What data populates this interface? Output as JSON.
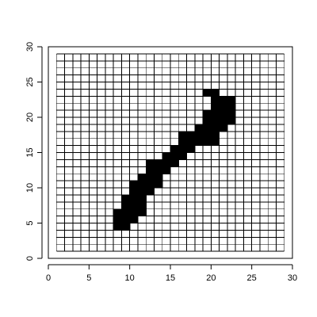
{
  "chart_data": {
    "type": "heatmap",
    "title": "",
    "xlabel": "",
    "ylabel": "",
    "xlim": [
      0,
      30
    ],
    "ylim": [
      0,
      30
    ],
    "x_ticks": [
      0,
      5,
      10,
      15,
      20,
      25,
      30
    ],
    "y_ticks": [
      0,
      5,
      10,
      15,
      20,
      25,
      30
    ],
    "x_tick_labels": [
      "0",
      "5",
      "10",
      "15",
      "20",
      "25",
      "30"
    ],
    "y_tick_labels": [
      "0",
      "5",
      "10",
      "15",
      "20",
      "25",
      "30"
    ],
    "grid": {
      "x_min": 1,
      "x_max": 29,
      "y_min": 1,
      "y_max": 29,
      "cell_size": 1
    },
    "colors": {
      "filled": "#000000",
      "empty": "#ffffff",
      "lines": "#000000"
    },
    "filled_cells": [
      [
        8,
        4
      ],
      [
        9,
        4
      ],
      [
        8,
        5
      ],
      [
        9,
        5
      ],
      [
        10,
        5
      ],
      [
        8,
        6
      ],
      [
        9,
        6
      ],
      [
        10,
        6
      ],
      [
        11,
        6
      ],
      [
        9,
        7
      ],
      [
        10,
        7
      ],
      [
        11,
        7
      ],
      [
        9,
        8
      ],
      [
        10,
        8
      ],
      [
        11,
        8
      ],
      [
        10,
        9
      ],
      [
        11,
        9
      ],
      [
        12,
        9
      ],
      [
        10,
        10
      ],
      [
        11,
        10
      ],
      [
        12,
        10
      ],
      [
        13,
        10
      ],
      [
        11,
        11
      ],
      [
        12,
        11
      ],
      [
        13,
        11
      ],
      [
        12,
        12
      ],
      [
        13,
        12
      ],
      [
        14,
        12
      ],
      [
        12,
        13
      ],
      [
        13,
        13
      ],
      [
        14,
        13
      ],
      [
        15,
        13
      ],
      [
        14,
        14
      ],
      [
        15,
        14
      ],
      [
        16,
        14
      ],
      [
        15,
        15
      ],
      [
        16,
        15
      ],
      [
        17,
        15
      ],
      [
        16,
        16
      ],
      [
        17,
        16
      ],
      [
        18,
        16
      ],
      [
        19,
        16
      ],
      [
        20,
        16
      ],
      [
        16,
        17
      ],
      [
        17,
        17
      ],
      [
        18,
        17
      ],
      [
        19,
        17
      ],
      [
        20,
        17
      ],
      [
        18,
        18
      ],
      [
        19,
        18
      ],
      [
        20,
        18
      ],
      [
        21,
        18
      ],
      [
        19,
        19
      ],
      [
        20,
        19
      ],
      [
        21,
        19
      ],
      [
        22,
        19
      ],
      [
        19,
        20
      ],
      [
        20,
        20
      ],
      [
        21,
        20
      ],
      [
        22,
        20
      ],
      [
        20,
        21
      ],
      [
        21,
        21
      ],
      [
        22,
        21
      ],
      [
        20,
        22
      ],
      [
        21,
        22
      ],
      [
        22,
        22
      ],
      [
        19,
        23
      ],
      [
        20,
        23
      ]
    ]
  }
}
